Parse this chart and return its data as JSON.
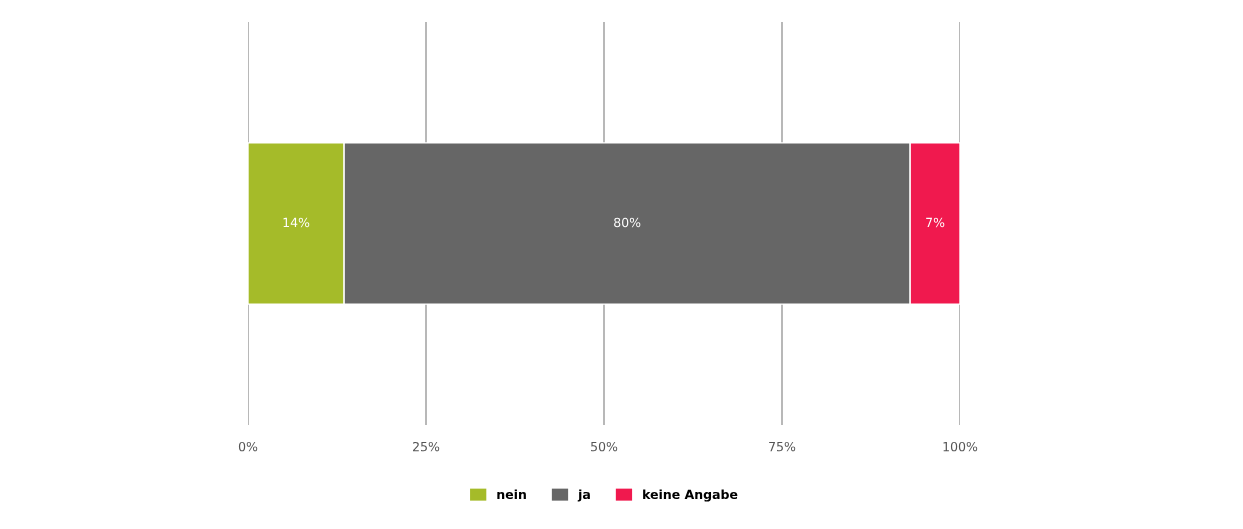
{
  "chart_data": {
    "type": "bar",
    "orientation": "horizontal",
    "stacked": true,
    "categories": [
      null
    ],
    "series": [
      {
        "name": "nein",
        "color": "#a5bb29",
        "values": [
          13.5
        ],
        "value_labels": [
          "14%"
        ]
      },
      {
        "name": "ja",
        "color": "#666666",
        "values": [
          79.5
        ],
        "value_labels": [
          "80%"
        ]
      },
      {
        "name": "keine Angabe",
        "color": "#f0194e",
        "values": [
          7
        ],
        "value_labels": [
          "7%"
        ]
      }
    ],
    "xlim": [
      0,
      100
    ],
    "xticks": [
      {
        "value": 0,
        "label": "0%"
      },
      {
        "value": 25,
        "label": "25%"
      },
      {
        "value": 50,
        "label": "50%"
      },
      {
        "value": 75,
        "label": "75%"
      },
      {
        "value": 100,
        "label": "100%"
      }
    ],
    "grid": "x",
    "legend": "bottom"
  }
}
